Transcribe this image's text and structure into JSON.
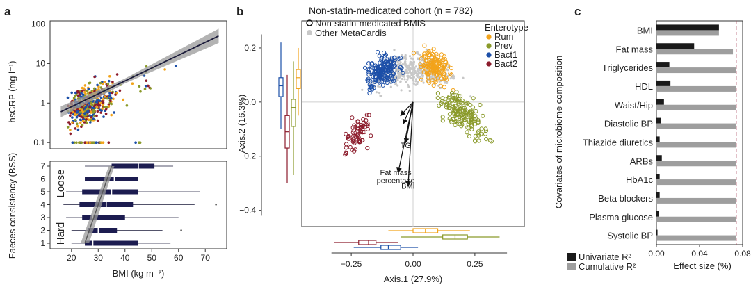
{
  "panels": [
    {
      "label": "a"
    },
    {
      "label": "b"
    },
    {
      "label": "c"
    }
  ],
  "chart_data": [
    {
      "type": "scatter",
      "panel": "a-top",
      "ylabel": "hsCRP (mg l⁻¹)",
      "yscale": "log",
      "ylim": [
        0.07,
        120
      ],
      "xlim": [
        12,
        78
      ],
      "yticks": [
        "100",
        "10",
        "1",
        "0.1"
      ],
      "ytick_values": [
        100,
        10,
        1,
        0.1
      ],
      "fit_line": {
        "x": [
          16,
          75
        ],
        "y": [
          0.6,
          50
        ]
      },
      "point_colors": [
        "#f2a31b",
        "#8a9a2a",
        "#1c4fa8",
        "#8c1c2c"
      ]
    },
    {
      "type": "box",
      "panel": "a-bottom",
      "ylabel": "Faeces consistency (BSS)",
      "xlabel": "BMI (kg m⁻²)",
      "xlim": [
        12,
        78
      ],
      "xticks": [
        "20",
        "30",
        "40",
        "50",
        "60",
        "70"
      ],
      "xtick_values": [
        20,
        30,
        40,
        50,
        60,
        70
      ],
      "categories": [
        "1",
        "2",
        "3",
        "4",
        "5",
        "6",
        "7"
      ],
      "annot_top": "Loose",
      "annot_bottom": "Hard",
      "boxes": [
        {
          "cat": "1",
          "q1": 25,
          "median": 28,
          "q3": 45,
          "wmin": 20,
          "wmax": 57
        },
        {
          "cat": "2",
          "q1": 26,
          "median": 30,
          "q3": 37,
          "wmin": 20,
          "wmax": 54
        },
        {
          "cat": "3",
          "q1": 24,
          "median": 28,
          "q3": 40,
          "wmin": 18,
          "wmax": 60
        },
        {
          "cat": "4",
          "q1": 23,
          "median": 33,
          "q3": 43,
          "wmin": 17,
          "wmax": 66
        },
        {
          "cat": "5",
          "q1": 24,
          "median": 35,
          "q3": 45,
          "wmin": 18,
          "wmax": 68
        },
        {
          "cat": "6",
          "q1": 25,
          "median": 36,
          "q3": 45,
          "wmin": 19,
          "wmax": 66
        },
        {
          "cat": "7",
          "q1": 35,
          "median": 45,
          "q3": 51,
          "wmin": 25,
          "wmax": 58
        }
      ],
      "fit_line": {
        "x": [
          25,
          35
        ],
        "y": [
          1,
          7
        ]
      }
    },
    {
      "type": "scatter",
      "panel": "b",
      "title": "Non-statin-medicated cohort (n = 782)",
      "legend_main": [
        {
          "name": "Non-statin-medicated BMIS",
          "style": "open"
        },
        {
          "name": "Other MetaCardis",
          "style": "grey"
        }
      ],
      "legend_title": "Enterotype",
      "series": [
        {
          "name": "Rum",
          "color": "#f2a31b"
        },
        {
          "name": "Prev",
          "color": "#8a9a2a"
        },
        {
          "name": "Bact1",
          "color": "#1c4fa8"
        },
        {
          "name": "Bact2",
          "color": "#8c1c2c"
        }
      ],
      "xlabel": "Axis.1 (27.9%)",
      "ylabel": "Axis.2 (16.3%)",
      "xlim": [
        -0.45,
        0.45
      ],
      "ylim": [
        -0.46,
        0.3
      ],
      "xticks": [
        "−0.25",
        "0.00",
        "0.25"
      ],
      "xtick_values": [
        -0.25,
        0.0,
        0.25
      ],
      "yticks": [
        "0.2",
        "0.0",
        "−0.2",
        "−0.4"
      ],
      "ytick_values": [
        0.2,
        0.0,
        -0.2,
        -0.4
      ],
      "arrows": [
        {
          "label": "TG",
          "x": -0.03,
          "y": -0.17
        },
        {
          "label": "Fat mass",
          "x": -0.07,
          "y": -0.27
        },
        {
          "label": "percentage",
          "x": -0.07,
          "y": -0.3
        },
        {
          "label": "BMI",
          "x": -0.02,
          "y": -0.32
        }
      ],
      "arrow_ends": [
        {
          "x": -0.03,
          "y": -0.15
        },
        {
          "x": -0.06,
          "y": -0.26
        },
        {
          "x": -0.02,
          "y": -0.31
        },
        {
          "x": -0.05,
          "y": -0.05
        },
        {
          "x": -0.04,
          "y": -0.08
        }
      ],
      "margin_boxes_y": [
        {
          "series": "Bact1",
          "q1": 0.02,
          "median": 0.06,
          "q3": 0.09,
          "wmin": -0.1,
          "wmax": 0.22
        },
        {
          "series": "Bact2",
          "q1": -0.17,
          "median": -0.11,
          "q3": -0.05,
          "wmin": -0.3,
          "wmax": 0.1
        },
        {
          "series": "Prev",
          "q1": -0.09,
          "median": -0.02,
          "q3": 0.01,
          "wmin": -0.27,
          "wmax": 0.15
        },
        {
          "series": "Rum",
          "q1": 0.05,
          "median": 0.09,
          "q3": 0.12,
          "wmin": -0.05,
          "wmax": 0.2
        }
      ],
      "margin_boxes_x": [
        {
          "series": "Rum",
          "q1": 0.0,
          "median": 0.05,
          "q3": 0.1,
          "wmin": -0.1,
          "wmax": 0.23
        },
        {
          "series": "Prev",
          "q1": 0.12,
          "median": 0.17,
          "q3": 0.22,
          "wmin": -0.05,
          "wmax": 0.35
        },
        {
          "series": "Bact2",
          "q1": -0.22,
          "median": -0.18,
          "q3": -0.15,
          "wmin": -0.32,
          "wmax": -0.06
        },
        {
          "series": "Bact1",
          "q1": -0.13,
          "median": -0.1,
          "q3": -0.05,
          "wmin": -0.24,
          "wmax": 0.02
        }
      ]
    },
    {
      "type": "bar",
      "panel": "c",
      "ylabel": "Covariates of microbiome composition",
      "xlabel": "Effect size (%)",
      "xlim": [
        0,
        0.08
      ],
      "xticks": [
        "0.00",
        "0.04",
        "0.08"
      ],
      "xtick_values": [
        0,
        0.04,
        0.08
      ],
      "threshold": 0.074,
      "categories": [
        "BMI",
        "Fat mass",
        "Triglycerides",
        "HDL",
        "Waist/Hip",
        "Diastolic BP",
        "Thiazide diuretics",
        "ARBs",
        "HbA1c",
        "Beta blockers",
        "Plasma glucose",
        "Systolic BP"
      ],
      "series": [
        {
          "name": "Univariate R²",
          "color": "#1a1a1a",
          "values": [
            0.058,
            0.035,
            0.012,
            0.013,
            0.007,
            0.004,
            0.003,
            0.005,
            0.003,
            0.003,
            0.002,
            0.001
          ]
        },
        {
          "name": "Cumulative R²",
          "color": "#9e9e9e",
          "values": [
            0.058,
            0.071,
            0.074,
            0.074,
            0.074,
            0.074,
            0.074,
            0.074,
            0.074,
            0.074,
            0.074,
            0.074
          ]
        }
      ]
    }
  ]
}
